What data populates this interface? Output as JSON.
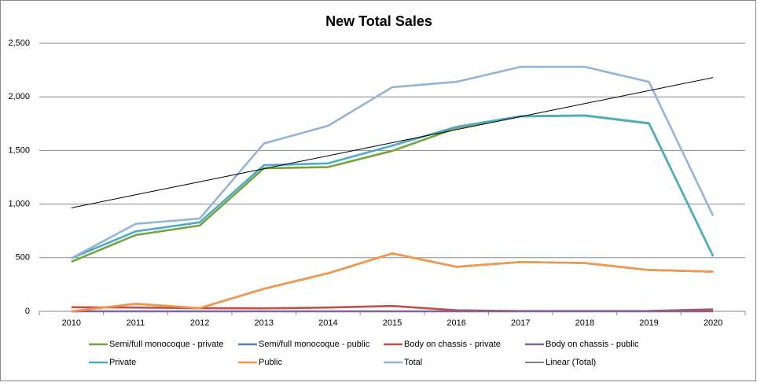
{
  "chart_data": {
    "type": "line",
    "title": "New Total Sales",
    "categories": [
      "2010",
      "2011",
      "2012",
      "2013",
      "2014",
      "2015",
      "2016",
      "2017",
      "2018",
      "2019",
      "2020"
    ],
    "series": [
      {
        "name": "Semi/full monocoque - private",
        "color": "#77a33b",
        "values": [
          462,
          711,
          800,
          1334,
          1345,
          1496,
          1708,
          1818,
          1825,
          1752,
          513
        ]
      },
      {
        "name": "Semi/full monocoque - public",
        "color": "#4f81bd",
        "values": [
          0,
          70,
          30,
          210,
          355,
          540,
          415,
          460,
          450,
          385,
          370
        ]
      },
      {
        "name": "Body on chassis - private",
        "color": "#c0504d",
        "values": [
          38,
          35,
          30,
          28,
          35,
          50,
          10,
          2,
          2,
          3,
          18
        ]
      },
      {
        "name": "Body on chassis - public",
        "color": "#8064a2",
        "values": [
          0,
          0,
          0,
          0,
          0,
          0,
          0,
          0,
          0,
          0,
          0
        ]
      },
      {
        "name": "Private",
        "color": "#4bacc6",
        "values": [
          495,
          745,
          830,
          1362,
          1380,
          1545,
          1720,
          1820,
          1827,
          1755,
          515
        ]
      },
      {
        "name": "Public",
        "color": "#f79646",
        "values": [
          0,
          70,
          30,
          210,
          355,
          540,
          415,
          460,
          450,
          385,
          370
        ]
      },
      {
        "name": "Total",
        "color": "#95b3d7",
        "values": [
          495,
          815,
          865,
          1565,
          1730,
          2090,
          2140,
          2280,
          2280,
          2140,
          890
        ]
      },
      {
        "name": "Linear (Total)",
        "color": "#000000",
        "values": [
          965,
          1086.5,
          1208,
          1329.5,
          1451,
          1572.5,
          1694,
          1815.5,
          1937,
          2058.5,
          2180
        ]
      }
    ],
    "ylim": [
      0,
      2500
    ],
    "yticks": [
      0,
      500,
      {
        "value": 1000,
        "label": "1,000"
      },
      {
        "value": 1500,
        "label": "1,500"
      },
      {
        "value": 2000,
        "label": "2,000"
      },
      {
        "value": 2500,
        "label": "2,500"
      }
    ],
    "grid": true
  }
}
